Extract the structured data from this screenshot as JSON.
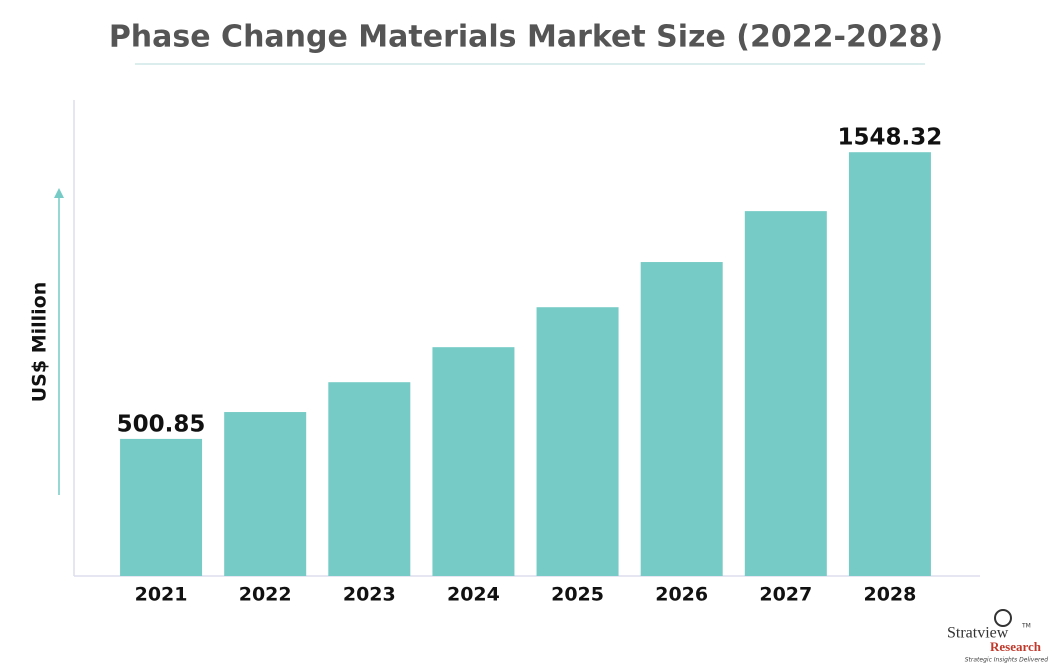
{
  "chart_data": {
    "type": "bar",
    "title": "Phase Change Materials Market Size (2022-2028)",
    "y_axis_label": "US$ Million",
    "categories": [
      "2021",
      "2022",
      "2023",
      "2024",
      "2025",
      "2026",
      "2027",
      "2028"
    ],
    "values": [
      500.85,
      599,
      708,
      836,
      982,
      1147,
      1333,
      1548.32
    ],
    "value_labels": [
      "500.85",
      null,
      null,
      null,
      null,
      null,
      null,
      "1548.32"
    ],
    "color": "#76cbc6",
    "ylim": [
      0,
      1750
    ],
    "logo": {
      "name": "Stratview",
      "name2": "Research",
      "tm": "TM",
      "tagline": "Strategic Insights Delivered"
    }
  }
}
